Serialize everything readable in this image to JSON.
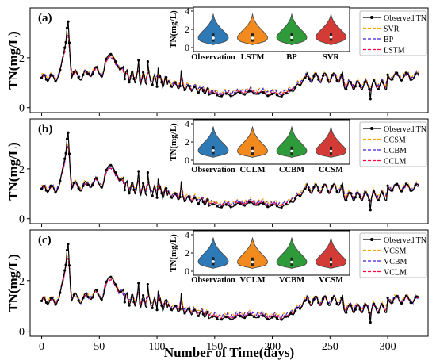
{
  "figure": {
    "xlabel": "Number of Time(days)",
    "ylabel": "TN(mg/L)",
    "xticks": [
      0,
      50,
      100,
      150,
      200,
      250,
      300
    ],
    "colors": {
      "observed": "#000000",
      "orange": "#FFA500",
      "blue": "#3D1FE0",
      "red": "#FF0040",
      "violin_blue": "#2E7AB6",
      "violin_orange": "#F28A1E",
      "violin_green": "#2F9A3A",
      "violin_red": "#D33B36"
    }
  },
  "chart_data": [
    {
      "type": "line",
      "panel_label": "(a)",
      "xlim": [
        -10,
        335
      ],
      "ylim": [
        -0.2,
        4.0
      ],
      "yticks": [
        0,
        2
      ],
      "legend_placement": "top-right",
      "series": [
        {
          "name": "Observed TN",
          "style": "line-marker"
        },
        {
          "name": "SVR",
          "style": "dashed"
        },
        {
          "name": "BP",
          "style": "dashed"
        },
        {
          "name": "LSTM",
          "style": "dashed"
        }
      ],
      "inset": {
        "type": "violin",
        "ylabel": "TN(mg/L)",
        "ylim": [
          0,
          4
        ],
        "yticks": [
          0,
          2,
          4
        ],
        "categories": [
          "Observation",
          "LSTM",
          "BP",
          "SVR"
        ],
        "medians": [
          1.05,
          1.05,
          1.1,
          1.15
        ]
      }
    },
    {
      "type": "line",
      "panel_label": "(b)",
      "xlim": [
        -10,
        335
      ],
      "ylim": [
        -0.2,
        4.0
      ],
      "yticks": [
        0,
        2
      ],
      "legend_placement": "top-right",
      "series": [
        {
          "name": "Observed TN",
          "style": "line-marker"
        },
        {
          "name": "CCSM",
          "style": "dashed"
        },
        {
          "name": "CCBM",
          "style": "dashed"
        },
        {
          "name": "CCLM",
          "style": "dashed"
        }
      ],
      "inset": {
        "type": "violin",
        "ylabel": "TN(mg/L)",
        "ylim": [
          0,
          4
        ],
        "yticks": [
          0,
          2,
          4
        ],
        "categories": [
          "Observation",
          "CCLM",
          "CCBM",
          "CCSM"
        ],
        "medians": [
          1.05,
          1.0,
          1.0,
          1.0
        ]
      }
    },
    {
      "type": "line",
      "panel_label": "(c)",
      "xlim": [
        -10,
        335
      ],
      "ylim": [
        -0.2,
        4.0
      ],
      "yticks": [
        0,
        2
      ],
      "legend_placement": "top-right",
      "series": [
        {
          "name": "Observed TN",
          "style": "line-marker"
        },
        {
          "name": "VCSM",
          "style": "dashed"
        },
        {
          "name": "VCBM",
          "style": "dashed"
        },
        {
          "name": "VCLM",
          "style": "dashed"
        }
      ],
      "inset": {
        "type": "violin",
        "ylabel": "TN(mg/L)",
        "ylim": [
          0,
          4
        ],
        "yticks": [
          0,
          2,
          4
        ],
        "categories": [
          "Observation",
          "VCLM",
          "VCBM",
          "VCSM"
        ],
        "medians": [
          1.05,
          1.0,
          1.0,
          1.0
        ]
      }
    }
  ]
}
